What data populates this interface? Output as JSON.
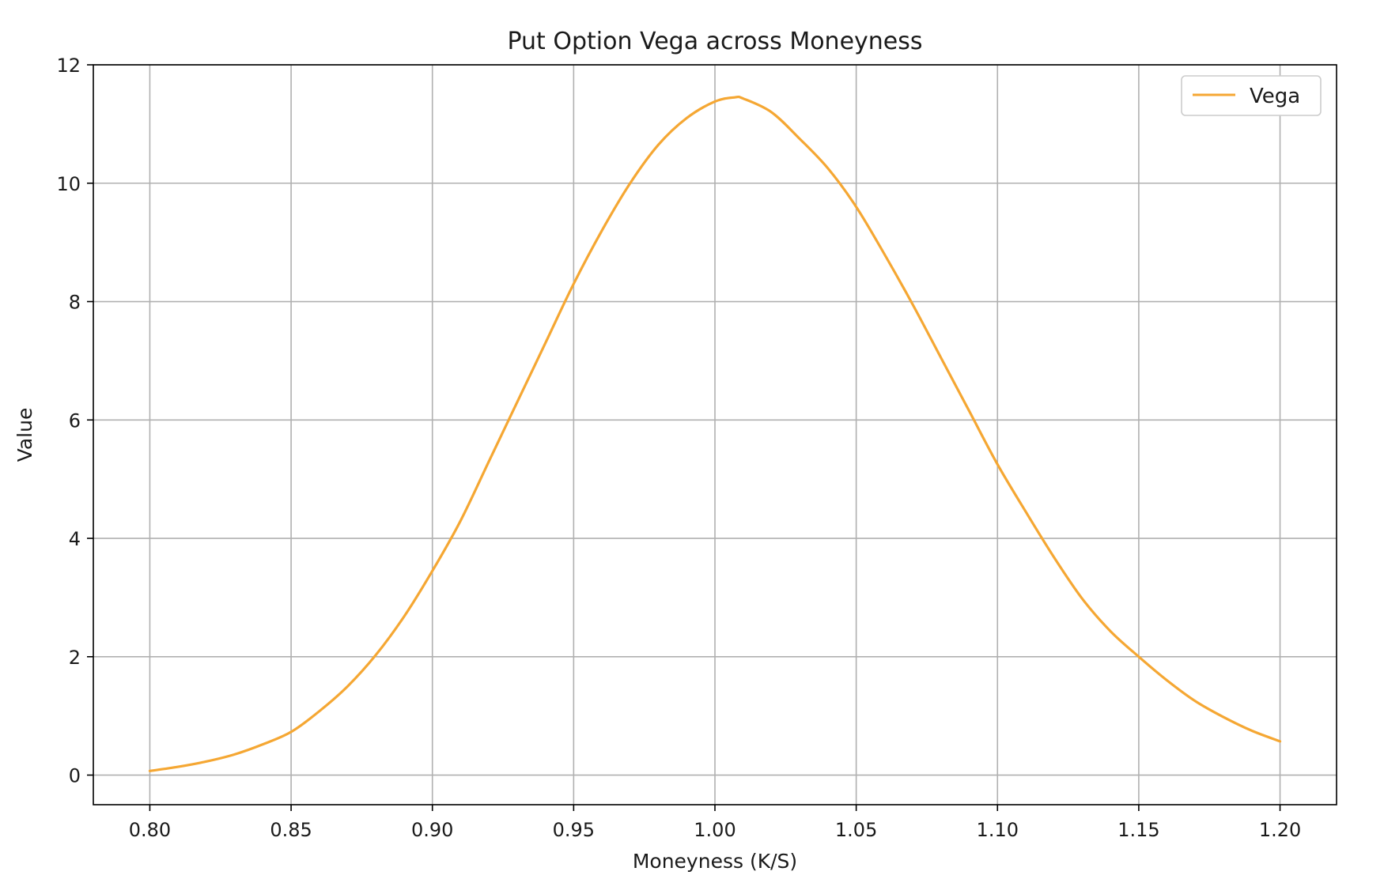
{
  "chart_data": {
    "type": "line",
    "title": "Put Option Vega across Moneyness",
    "xlabel": "Moneyness (K/S)",
    "ylabel": "Value",
    "xlim": [
      0.78,
      1.22
    ],
    "ylim": [
      -0.5,
      12
    ],
    "xticks": [
      0.8,
      0.85,
      0.9,
      0.95,
      1.0,
      1.05,
      1.1,
      1.15,
      1.2
    ],
    "xtick_labels": [
      "0.80",
      "0.85",
      "0.90",
      "0.95",
      "1.00",
      "1.05",
      "1.10",
      "1.15",
      "1.20"
    ],
    "yticks": [
      0,
      2,
      4,
      6,
      8,
      10,
      12
    ],
    "ytick_labels": [
      "0",
      "2",
      "4",
      "6",
      "8",
      "10",
      "12"
    ],
    "grid": true,
    "legend_position": "top-right",
    "series": [
      {
        "name": "Vega",
        "color": "#f5a733",
        "x": [
          0.8,
          0.81,
          0.82,
          0.83,
          0.84,
          0.85,
          0.86,
          0.87,
          0.88,
          0.89,
          0.9,
          0.91,
          0.92,
          0.93,
          0.94,
          0.95,
          0.96,
          0.97,
          0.98,
          0.99,
          1.0,
          1.007,
          1.01,
          1.02,
          1.03,
          1.04,
          1.05,
          1.06,
          1.07,
          1.08,
          1.09,
          1.1,
          1.11,
          1.12,
          1.13,
          1.14,
          1.15,
          1.16,
          1.17,
          1.18,
          1.19,
          1.2
        ],
        "y": [
          0.07,
          0.14,
          0.23,
          0.35,
          0.52,
          0.73,
          1.08,
          1.5,
          2.03,
          2.68,
          3.45,
          4.3,
          5.3,
          6.3,
          7.3,
          8.3,
          9.2,
          10.0,
          10.65,
          11.1,
          11.38,
          11.45,
          11.43,
          11.2,
          10.75,
          10.25,
          9.6,
          8.8,
          7.95,
          7.05,
          6.15,
          5.25,
          4.45,
          3.68,
          2.98,
          2.43,
          2.0,
          1.6,
          1.25,
          0.98,
          0.75,
          0.57
        ]
      }
    ]
  }
}
